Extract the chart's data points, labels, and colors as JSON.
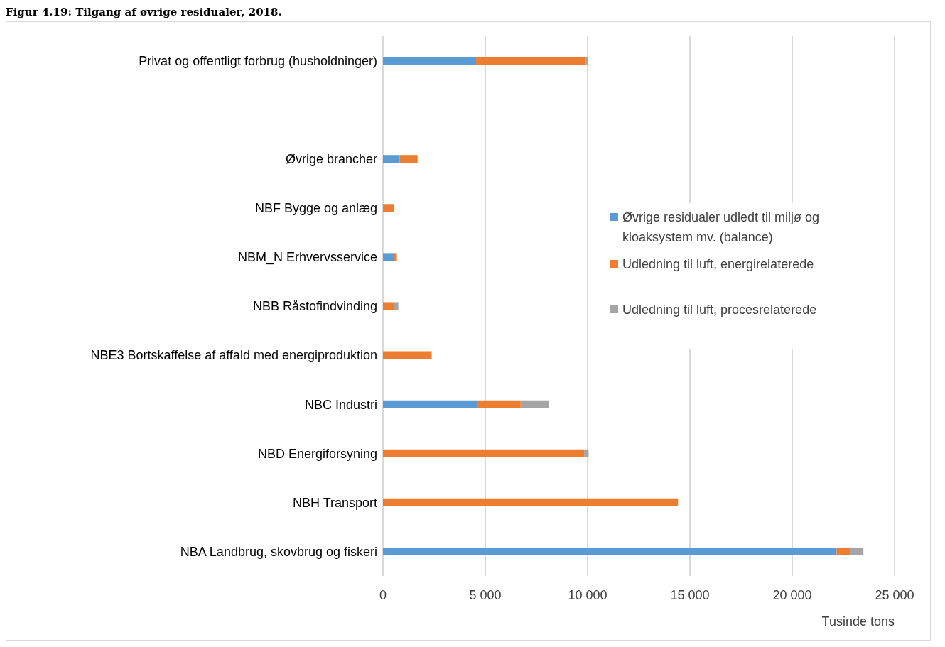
{
  "chart_data": {
    "type": "bar",
    "orientation": "horizontal",
    "stacked": true,
    "title": "Figur 4.19: Tilgang af øvrige residualer, 2018.",
    "xlabel": "Tusinde tons",
    "categories": [
      "Privat og offentligt forbrug (husholdninger)",
      null,
      "Øvrige brancher",
      "NBF Bygge og anlæg",
      "NBM_N Erhvervsservice",
      "NBB  Råstofindvinding",
      "NBE3 Bortskaffelse af affald med energiproduktion",
      "NBC  Industri",
      "NBD  Energiforsyning",
      "NBH  Transport",
      "NBA  Landbrug, skovbrug og fiskeri"
    ],
    "series": [
      {
        "name": "Øvrige residualer udledt til miljø og kloaksystem mv. (balance)",
        "color": "#5b9bd5",
        "values": [
          4550,
          null,
          820,
          0,
          530,
          0,
          0,
          4600,
          0,
          0,
          22170
        ]
      },
      {
        "name": "Udledning til luft, energirelaterede",
        "color": "#ed7d31",
        "values": [
          5350,
          null,
          860,
          540,
          150,
          530,
          2380,
          2130,
          9830,
          14420,
          680
        ]
      },
      {
        "name": "Udledning til luft, procesrelaterede",
        "color": "#a5a5a5",
        "values": [
          100,
          null,
          60,
          null,
          null,
          220,
          0,
          1360,
          220,
          0,
          630
        ]
      }
    ],
    "xlim": [
      0,
      25000
    ],
    "xticks": [
      0,
      {
        "value": 5000,
        "label": "5 000"
      },
      {
        "value": 10000,
        "label": "10 000"
      },
      {
        "value": 15000,
        "label": "15 000"
      },
      {
        "value": 20000,
        "label": "20 000"
      },
      {
        "value": 25000,
        "label": "25 000"
      }
    ],
    "grid": "x",
    "legend": "right"
  }
}
